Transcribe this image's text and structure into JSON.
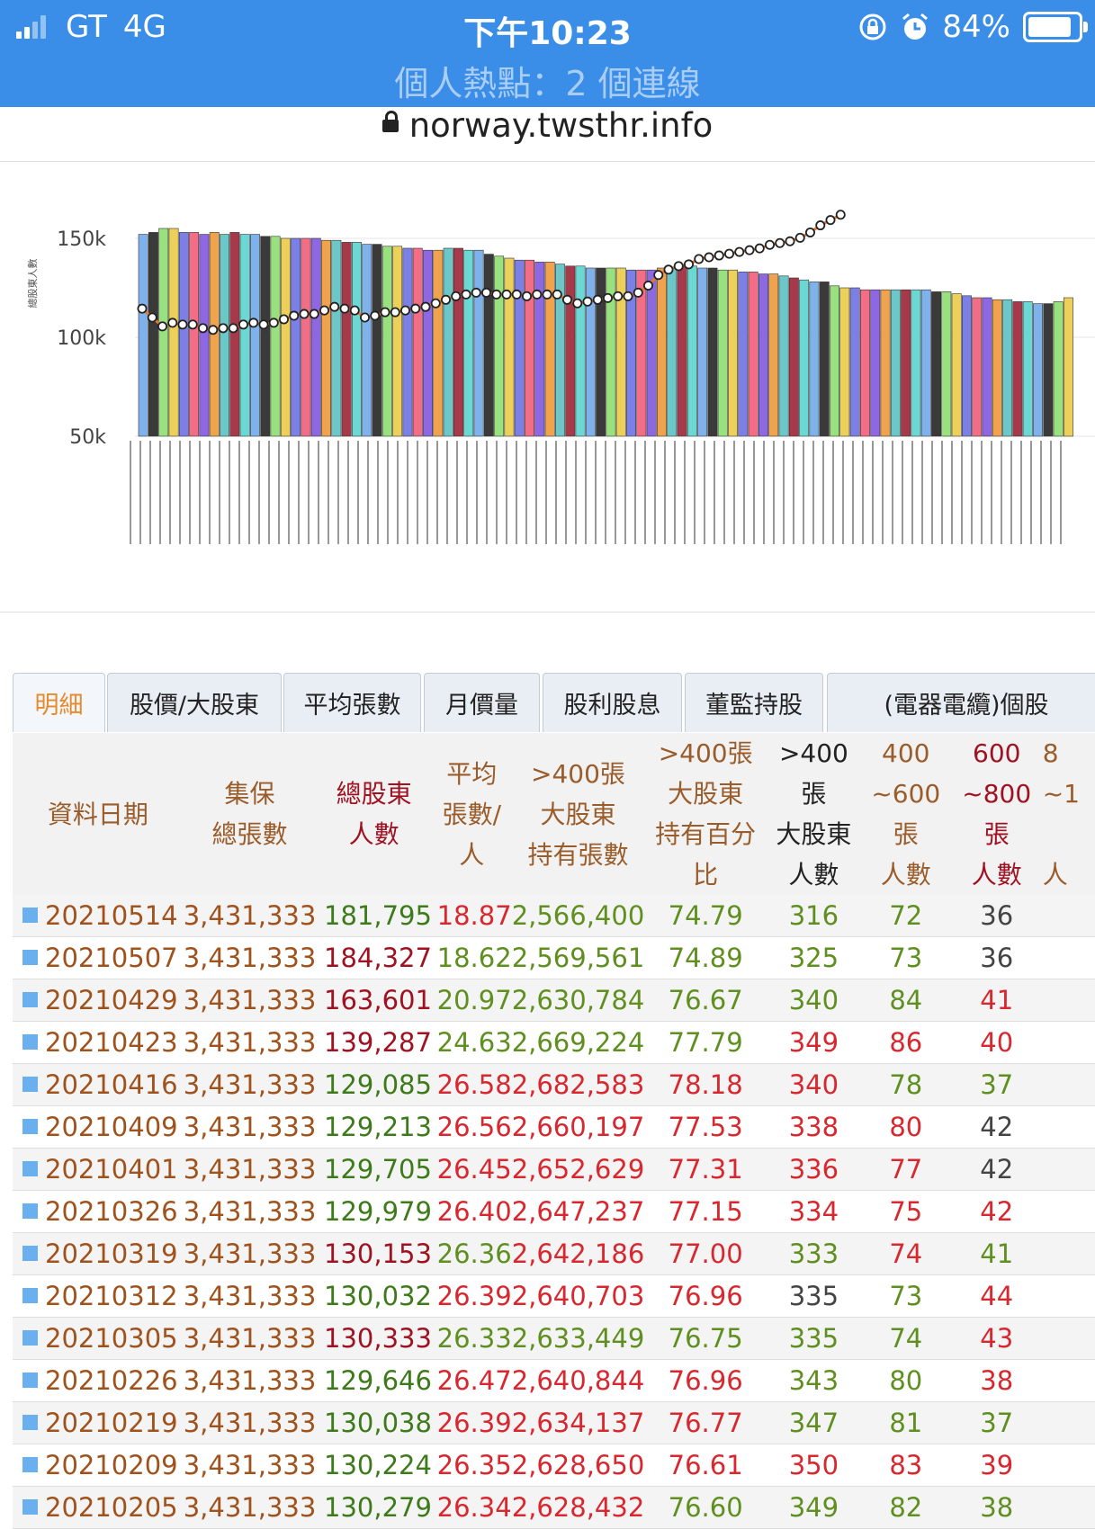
{
  "status": {
    "carrier": "GT",
    "network": "4G",
    "time": "下午10:23",
    "battery": "84%",
    "hotspot": "個人熱點：2 個連線"
  },
  "browser": {
    "url": "norway.twsthr.info"
  },
  "tabs": [
    "明細",
    "股價/大股東",
    "平均張數",
    "月價量",
    "股利股息",
    "董監持股",
    "(電器電纜)個股"
  ],
  "chart_data": {
    "type": "bar",
    "ylabel": "總股東人數",
    "ytick_labels": [
      "150k",
      "100k",
      "50k"
    ],
    "bar_values": [
      152,
      153,
      155,
      155,
      153,
      153,
      152,
      153,
      152,
      153,
      152,
      152,
      151,
      151,
      150,
      150,
      150,
      150,
      149,
      149,
      148,
      148,
      147,
      147,
      146,
      146,
      145,
      145,
      144,
      144,
      145,
      145,
      144,
      144,
      142,
      141,
      140,
      139,
      139,
      138,
      138,
      137,
      136,
      136,
      135,
      135,
      135,
      135,
      134,
      134,
      134,
      135,
      135,
      136,
      136,
      135,
      135,
      134,
      134,
      133,
      133,
      132,
      132,
      131,
      130,
      129,
      128,
      128,
      126,
      125,
      125,
      124,
      124,
      124,
      124,
      124,
      124,
      124,
      123,
      123,
      122,
      121,
      120,
      120,
      119,
      119,
      118,
      118,
      117,
      117,
      118,
      120
    ],
    "line_values": [
      1.05,
      1.0,
      0.95,
      0.97,
      0.96,
      0.96,
      0.94,
      0.93,
      0.94,
      0.94,
      0.96,
      0.97,
      0.96,
      0.97,
      0.99,
      1.01,
      1.02,
      1.02,
      1.04,
      1.06,
      1.05,
      1.04,
      1.0,
      1.01,
      1.03,
      1.03,
      1.04,
      1.05,
      1.06,
      1.08,
      1.1,
      1.12,
      1.13,
      1.14,
      1.14,
      1.13,
      1.13,
      1.13,
      1.12,
      1.13,
      1.13,
      1.13,
      1.1,
      1.08,
      1.09,
      1.1,
      1.11,
      1.12,
      1.12,
      1.14,
      1.18,
      1.24,
      1.27,
      1.29,
      1.3,
      1.33,
      1.34,
      1.35,
      1.36,
      1.37,
      1.38,
      1.39,
      1.41,
      1.42,
      1.43,
      1.45,
      1.48,
      1.52,
      1.55,
      1.58
    ],
    "x_tick_count": 95
  },
  "table": {
    "headers": [
      [
        "資料日期"
      ],
      [
        "集保",
        "總張數"
      ],
      [
        "總股東",
        "人數"
      ],
      [
        "平均",
        "張數/",
        "人"
      ],
      [
        ">400張",
        "大股東",
        "持有張數"
      ],
      [
        ">400張",
        "大股東",
        "持有百分",
        "比"
      ],
      [
        ">400",
        "張",
        "大股東",
        "人數"
      ],
      [
        "400",
        "~600",
        "張",
        "人數"
      ],
      [
        "600",
        "~800",
        "張",
        "人數"
      ],
      [
        "8",
        "~1",
        "",
        "人"
      ]
    ],
    "rows": [
      [
        "20210514",
        "3,431,333",
        "181,795",
        "18.87",
        "2,566,400",
        "74.79",
        "316",
        "72",
        "36"
      ],
      [
        "20210507",
        "3,431,333",
        "184,327",
        "18.62",
        "2,569,561",
        "74.89",
        "325",
        "73",
        "36"
      ],
      [
        "20210429",
        "3,431,333",
        "163,601",
        "20.97",
        "2,630,784",
        "76.67",
        "340",
        "84",
        "41"
      ],
      [
        "20210423",
        "3,431,333",
        "139,287",
        "24.63",
        "2,669,224",
        "77.79",
        "349",
        "86",
        "40"
      ],
      [
        "20210416",
        "3,431,333",
        "129,085",
        "26.58",
        "2,682,583",
        "78.18",
        "340",
        "78",
        "37"
      ],
      [
        "20210409",
        "3,431,333",
        "129,213",
        "26.56",
        "2,660,197",
        "77.53",
        "338",
        "80",
        "42"
      ],
      [
        "20210401",
        "3,431,333",
        "129,705",
        "26.45",
        "2,652,629",
        "77.31",
        "336",
        "77",
        "42"
      ],
      [
        "20210326",
        "3,431,333",
        "129,979",
        "26.40",
        "2,647,237",
        "77.15",
        "334",
        "75",
        "42"
      ],
      [
        "20210319",
        "3,431,333",
        "130,153",
        "26.36",
        "2,642,186",
        "77.00",
        "333",
        "74",
        "41"
      ],
      [
        "20210312",
        "3,431,333",
        "130,032",
        "26.39",
        "2,640,703",
        "76.96",
        "335",
        "73",
        "44"
      ],
      [
        "20210305",
        "3,431,333",
        "130,333",
        "26.33",
        "2,633,449",
        "76.75",
        "335",
        "74",
        "43"
      ],
      [
        "20210226",
        "3,431,333",
        "129,646",
        "26.47",
        "2,640,844",
        "76.96",
        "343",
        "80",
        "38"
      ],
      [
        "20210219",
        "3,431,333",
        "130,038",
        "26.39",
        "2,634,137",
        "76.77",
        "347",
        "81",
        "37"
      ],
      [
        "20210209",
        "3,431,333",
        "130,224",
        "26.35",
        "2,628,650",
        "76.61",
        "350",
        "83",
        "39"
      ],
      [
        "20210205",
        "3,431,333",
        "130,279",
        "26.34",
        "2,628,432",
        "76.60",
        "349",
        "82",
        "38"
      ]
    ],
    "row_colors": [
      [
        "#a0521d",
        "#a0521d",
        "#3d7a1a",
        "#d8272e",
        "#5f8f1f",
        "#5f8f1f",
        "#5f8f1f",
        "#5f8f1f",
        "#444444"
      ],
      [
        "#a0521d",
        "#a0521d",
        "#a01222",
        "#5f8f1f",
        "#5f8f1f",
        "#5f8f1f",
        "#5f8f1f",
        "#5f8f1f",
        "#444444"
      ],
      [
        "#a0521d",
        "#a0521d",
        "#a01222",
        "#5f8f1f",
        "#5f8f1f",
        "#5f8f1f",
        "#5f8f1f",
        "#5f8f1f",
        "#d8272e"
      ],
      [
        "#a0521d",
        "#a0521d",
        "#a01222",
        "#5f8f1f",
        "#5f8f1f",
        "#5f8f1f",
        "#d8272e",
        "#d8272e",
        "#d8272e"
      ],
      [
        "#a0521d",
        "#a0521d",
        "#3d7a1a",
        "#d8272e",
        "#d8272e",
        "#d8272e",
        "#d8272e",
        "#5f8f1f",
        "#5f8f1f"
      ],
      [
        "#a0521d",
        "#a0521d",
        "#3d7a1a",
        "#d8272e",
        "#d8272e",
        "#d8272e",
        "#d8272e",
        "#d8272e",
        "#444444"
      ],
      [
        "#a0521d",
        "#a0521d",
        "#3d7a1a",
        "#d8272e",
        "#d8272e",
        "#d8272e",
        "#d8272e",
        "#d8272e",
        "#444444"
      ],
      [
        "#a0521d",
        "#a0521d",
        "#3d7a1a",
        "#d8272e",
        "#d8272e",
        "#d8272e",
        "#d8272e",
        "#d8272e",
        "#d8272e"
      ],
      [
        "#a0521d",
        "#a0521d",
        "#a01222",
        "#5f8f1f",
        "#d8272e",
        "#d8272e",
        "#5f8f1f",
        "#d8272e",
        "#5f8f1f"
      ],
      [
        "#a0521d",
        "#a0521d",
        "#3d7a1a",
        "#d8272e",
        "#d8272e",
        "#d8272e",
        "#444444",
        "#5f8f1f",
        "#d8272e"
      ],
      [
        "#a0521d",
        "#a0521d",
        "#a01222",
        "#5f8f1f",
        "#5f8f1f",
        "#5f8f1f",
        "#5f8f1f",
        "#5f8f1f",
        "#d8272e"
      ],
      [
        "#a0521d",
        "#a0521d",
        "#3d7a1a",
        "#d8272e",
        "#d8272e",
        "#d8272e",
        "#5f8f1f",
        "#5f8f1f",
        "#d8272e"
      ],
      [
        "#a0521d",
        "#a0521d",
        "#3d7a1a",
        "#d8272e",
        "#d8272e",
        "#d8272e",
        "#5f8f1f",
        "#5f8f1f",
        "#5f8f1f"
      ],
      [
        "#a0521d",
        "#a0521d",
        "#3d7a1a",
        "#d8272e",
        "#d8272e",
        "#d8272e",
        "#d8272e",
        "#d8272e",
        "#d8272e"
      ],
      [
        "#a0521d",
        "#a0521d",
        "#3d7a1a",
        "#d8272e",
        "#d8272e",
        "#5f8f1f",
        "#5f8f1f",
        "#5f8f1f",
        "#5f8f1f"
      ]
    ],
    "header_colors": [
      "#9a5c2a",
      "#9a5c2a",
      "#a01222",
      "#9a5c2a",
      "#9a5c2a",
      "#9a5c2a",
      "#222222",
      "#9a5c2a",
      "#a01222",
      "#9a5c2a"
    ]
  }
}
